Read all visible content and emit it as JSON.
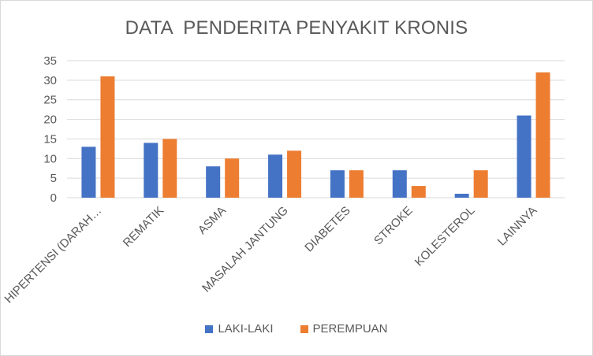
{
  "chart_data": {
    "type": "bar",
    "title": "DATA  PENDERITA PENYAKIT KRONIS",
    "categories": [
      "HIPERTENSI (DARAH…",
      "REMATIK",
      "ASMA",
      "MASALAH JANTUNG",
      "DIABETES",
      "STROKE",
      "KOLESTEROL",
      "LAINNYA"
    ],
    "series": [
      {
        "name": "LAKI-LAKI",
        "color": "#4472c4",
        "values": [
          13,
          14,
          8,
          11,
          7,
          7,
          1,
          21
        ]
      },
      {
        "name": "PEREMPUAN",
        "color": "#ed7d31",
        "values": [
          31,
          15,
          10,
          12,
          7,
          3,
          7,
          32
        ]
      }
    ],
    "ylim": [
      0,
      35
    ],
    "yticks": [
      "0",
      "5",
      "10",
      "15",
      "20",
      "25",
      "30",
      "35"
    ],
    "grid": true,
    "legend_position": "bottom"
  }
}
